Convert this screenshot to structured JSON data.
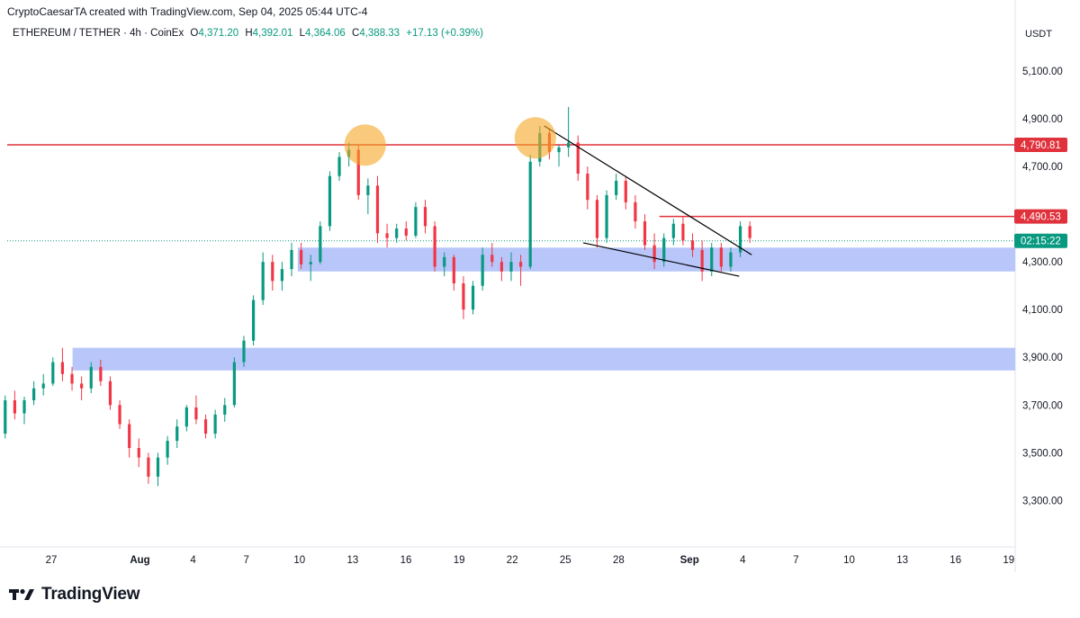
{
  "header": {
    "attribution": "CryptoCaesarTA created with TradingView.com, Sep 04, 2025 05:44 UTC-4"
  },
  "legend": {
    "symbol": "ETHEREUM / TETHER · 4h · CoinEx",
    "o_label": "O",
    "o_value": "4,371.20",
    "h_label": "H",
    "h_value": "4,392.01",
    "l_label": "L",
    "l_value": "4,364.06",
    "c_label": "C",
    "c_value": "4,388.33",
    "change": "+17.13 (+0.39%)"
  },
  "currency": "USDT",
  "footer": {
    "brand": "TradingView",
    "logo_icon": "tradingview-logo-icon"
  },
  "colors": {
    "up": "#089981",
    "down": "#f23645",
    "zone": "#abbcf9",
    "resistance": "#e0323c",
    "circle": "#f5a623",
    "trendline": "#000000"
  },
  "chart_data": {
    "type": "candlestick",
    "ylim": [
      3100,
      5200
    ],
    "y_ticks": [
      "5,100.00",
      "4,900.00",
      "4,700.00",
      "4,300.00",
      "4,100.00",
      "3,900.00",
      "3,700.00",
      "3,500.00",
      "3,300.00"
    ],
    "y_tick_values": [
      5100,
      4900,
      4700,
      4300,
      4100,
      3900,
      3700,
      3500,
      3300
    ],
    "x_ticks": [
      "27",
      "Aug",
      "4",
      "7",
      "10",
      "13",
      "16",
      "19",
      "22",
      "25",
      "28",
      "Sep",
      "4",
      "7",
      "10",
      "13",
      "16",
      "19"
    ],
    "x_tick_days": [
      0,
      5,
      8,
      11,
      14,
      17,
      20,
      23,
      26,
      29,
      32,
      36,
      39,
      42,
      45,
      48,
      51,
      54
    ],
    "price_labels": [
      {
        "value": 4790.81,
        "text": "4,790.81",
        "color": "#e0323c"
      },
      {
        "value": 4490.53,
        "text": "4,490.53",
        "color": "#e0323c"
      },
      {
        "value": 4388.33,
        "text": "02:15:22",
        "color": "#089981"
      }
    ],
    "resistance_line": 4790.81,
    "short_resistance": {
      "value": 4490.53,
      "from_day": 34.3,
      "to_day": 42.7
    },
    "demand_zones": [
      {
        "from_day": 13.9,
        "low": 4260,
        "high": 4360
      },
      {
        "from_day": 1.2,
        "low": 3845,
        "high": 3940
      }
    ],
    "highlight_circles": [
      {
        "day": 17.7,
        "price": 4790
      },
      {
        "day": 27.3,
        "price": 4820
      }
    ],
    "trendlines": [
      {
        "day1": 27.8,
        "price1": 4870,
        "day2": 39.5,
        "price2": 4330
      },
      {
        "day1": 30.0,
        "price1": 4380,
        "day2": 38.8,
        "price2": 4240
      }
    ],
    "candles": [
      {
        "o": 3580,
        "h": 3740,
        "l": 3560,
        "c": 3720
      },
      {
        "o": 3720,
        "h": 3760,
        "l": 3640,
        "c": 3665
      },
      {
        "o": 3665,
        "h": 3735,
        "l": 3620,
        "c": 3720
      },
      {
        "o": 3720,
        "h": 3800,
        "l": 3700,
        "c": 3770
      },
      {
        "o": 3770,
        "h": 3830,
        "l": 3740,
        "c": 3790
      },
      {
        "o": 3790,
        "h": 3900,
        "l": 3780,
        "c": 3880
      },
      {
        "o": 3880,
        "h": 3940,
        "l": 3800,
        "c": 3830
      },
      {
        "o": 3830,
        "h": 3860,
        "l": 3760,
        "c": 3790
      },
      {
        "o": 3790,
        "h": 3820,
        "l": 3720,
        "c": 3770
      },
      {
        "o": 3770,
        "h": 3880,
        "l": 3750,
        "c": 3860
      },
      {
        "o": 3860,
        "h": 3890,
        "l": 3780,
        "c": 3800
      },
      {
        "o": 3800,
        "h": 3820,
        "l": 3680,
        "c": 3700
      },
      {
        "o": 3700,
        "h": 3720,
        "l": 3600,
        "c": 3620
      },
      {
        "o": 3620,
        "h": 3640,
        "l": 3480,
        "c": 3520
      },
      {
        "o": 3520,
        "h": 3560,
        "l": 3440,
        "c": 3480
      },
      {
        "o": 3480,
        "h": 3500,
        "l": 3370,
        "c": 3400
      },
      {
        "o": 3400,
        "h": 3500,
        "l": 3360,
        "c": 3480
      },
      {
        "o": 3480,
        "h": 3570,
        "l": 3450,
        "c": 3550
      },
      {
        "o": 3550,
        "h": 3640,
        "l": 3520,
        "c": 3610
      },
      {
        "o": 3610,
        "h": 3700,
        "l": 3590,
        "c": 3690
      },
      {
        "o": 3690,
        "h": 3740,
        "l": 3620,
        "c": 3640
      },
      {
        "o": 3640,
        "h": 3660,
        "l": 3560,
        "c": 3580
      },
      {
        "o": 3580,
        "h": 3680,
        "l": 3560,
        "c": 3660
      },
      {
        "o": 3660,
        "h": 3730,
        "l": 3630,
        "c": 3700
      },
      {
        "o": 3700,
        "h": 3900,
        "l": 3690,
        "c": 3880
      },
      {
        "o": 3880,
        "h": 3990,
        "l": 3860,
        "c": 3970
      },
      {
        "o": 3970,
        "h": 4160,
        "l": 3950,
        "c": 4140
      },
      {
        "o": 4140,
        "h": 4340,
        "l": 4120,
        "c": 4300
      },
      {
        "o": 4300,
        "h": 4330,
        "l": 4180,
        "c": 4220
      },
      {
        "o": 4220,
        "h": 4300,
        "l": 4180,
        "c": 4270
      },
      {
        "o": 4270,
        "h": 4380,
        "l": 4240,
        "c": 4350
      },
      {
        "o": 4350,
        "h": 4380,
        "l": 4270,
        "c": 4290
      },
      {
        "o": 4290,
        "h": 4330,
        "l": 4220,
        "c": 4300
      },
      {
        "o": 4300,
        "h": 4470,
        "l": 4290,
        "c": 4450
      },
      {
        "o": 4450,
        "h": 4680,
        "l": 4430,
        "c": 4660
      },
      {
        "o": 4660,
        "h": 4760,
        "l": 4640,
        "c": 4740
      },
      {
        "o": 4740,
        "h": 4800,
        "l": 4700,
        "c": 4770
      },
      {
        "o": 4770,
        "h": 4790,
        "l": 4560,
        "c": 4580
      },
      {
        "o": 4580,
        "h": 4650,
        "l": 4500,
        "c": 4620
      },
      {
        "o": 4620,
        "h": 4660,
        "l": 4380,
        "c": 4420
      },
      {
        "o": 4420,
        "h": 4460,
        "l": 4360,
        "c": 4400
      },
      {
        "o": 4400,
        "h": 4460,
        "l": 4380,
        "c": 4440
      },
      {
        "o": 4440,
        "h": 4470,
        "l": 4390,
        "c": 4410
      },
      {
        "o": 4410,
        "h": 4550,
        "l": 4400,
        "c": 4530
      },
      {
        "o": 4530,
        "h": 4560,
        "l": 4420,
        "c": 4450
      },
      {
        "o": 4450,
        "h": 4470,
        "l": 4260,
        "c": 4280
      },
      {
        "o": 4280,
        "h": 4340,
        "l": 4240,
        "c": 4320
      },
      {
        "o": 4320,
        "h": 4330,
        "l": 4180,
        "c": 4210
      },
      {
        "o": 4210,
        "h": 4240,
        "l": 4060,
        "c": 4100
      },
      {
        "o": 4100,
        "h": 4220,
        "l": 4080,
        "c": 4200
      },
      {
        "o": 4200,
        "h": 4360,
        "l": 4180,
        "c": 4330
      },
      {
        "o": 4330,
        "h": 4380,
        "l": 4280,
        "c": 4300
      },
      {
        "o": 4300,
        "h": 4320,
        "l": 4220,
        "c": 4260
      },
      {
        "o": 4260,
        "h": 4340,
        "l": 4220,
        "c": 4300
      },
      {
        "o": 4300,
        "h": 4330,
        "l": 4200,
        "c": 4280
      },
      {
        "o": 4280,
        "h": 4750,
        "l": 4270,
        "c": 4720
      },
      {
        "o": 4720,
        "h": 4870,
        "l": 4700,
        "c": 4840
      },
      {
        "o": 4840,
        "h": 4860,
        "l": 4730,
        "c": 4760
      },
      {
        "o": 4760,
        "h": 4790,
        "l": 4700,
        "c": 4780
      },
      {
        "o": 4780,
        "h": 4950,
        "l": 4740,
        "c": 4800
      },
      {
        "o": 4800,
        "h": 4830,
        "l": 4640,
        "c": 4670
      },
      {
        "o": 4670,
        "h": 4700,
        "l": 4520,
        "c": 4560
      },
      {
        "o": 4560,
        "h": 4580,
        "l": 4360,
        "c": 4400
      },
      {
        "o": 4400,
        "h": 4600,
        "l": 4380,
        "c": 4580
      },
      {
        "o": 4580,
        "h": 4670,
        "l": 4560,
        "c": 4640
      },
      {
        "o": 4640,
        "h": 4660,
        "l": 4520,
        "c": 4550
      },
      {
        "o": 4550,
        "h": 4580,
        "l": 4440,
        "c": 4470
      },
      {
        "o": 4470,
        "h": 4500,
        "l": 4350,
        "c": 4370
      },
      {
        "o": 4370,
        "h": 4420,
        "l": 4270,
        "c": 4300
      },
      {
        "o": 4300,
        "h": 4420,
        "l": 4280,
        "c": 4400
      },
      {
        "o": 4400,
        "h": 4480,
        "l": 4370,
        "c": 4460
      },
      {
        "o": 4460,
        "h": 4490,
        "l": 4370,
        "c": 4390
      },
      {
        "o": 4390,
        "h": 4420,
        "l": 4320,
        "c": 4350
      },
      {
        "o": 4350,
        "h": 4390,
        "l": 4220,
        "c": 4260
      },
      {
        "o": 4260,
        "h": 4380,
        "l": 4240,
        "c": 4360
      },
      {
        "o": 4360,
        "h": 4380,
        "l": 4260,
        "c": 4280
      },
      {
        "o": 4280,
        "h": 4360,
        "l": 4260,
        "c": 4340
      },
      {
        "o": 4340,
        "h": 4470,
        "l": 4320,
        "c": 4450
      },
      {
        "o": 4450,
        "h": 4470,
        "l": 4380,
        "c": 4400
      }
    ]
  }
}
